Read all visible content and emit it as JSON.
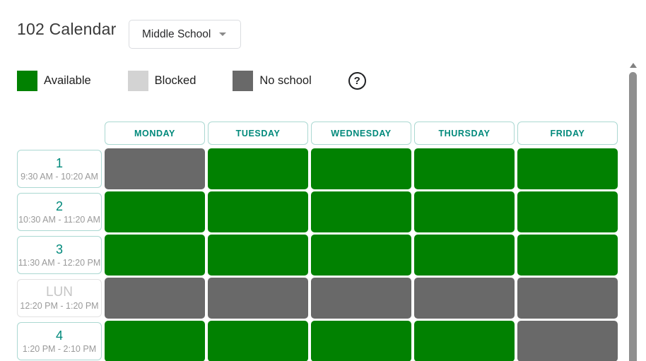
{
  "header": {
    "title": "102 Calendar",
    "school_selector": {
      "value": "Middle School"
    }
  },
  "legend": {
    "items": [
      {
        "key": "available",
        "label": "Available"
      },
      {
        "key": "blocked",
        "label": "Blocked"
      },
      {
        "key": "no_school",
        "label": "No school"
      }
    ],
    "help_label": "?"
  },
  "calendar": {
    "days": [
      "MONDAY",
      "TUESDAY",
      "WEDNESDAY",
      "THURSDAY",
      "FRIDAY"
    ],
    "periods": [
      {
        "label": "1",
        "time": "9:30 AM - 10:20 AM",
        "lunch": false,
        "slots": [
          "no_school",
          "available",
          "available",
          "available",
          "available"
        ]
      },
      {
        "label": "2",
        "time": "10:30 AM - 11:20 AM",
        "lunch": false,
        "slots": [
          "available",
          "available",
          "available",
          "available",
          "available"
        ]
      },
      {
        "label": "3",
        "time": "11:30 AM - 12:20 PM",
        "lunch": false,
        "slots": [
          "available",
          "available",
          "available",
          "available",
          "available"
        ]
      },
      {
        "label": "LUN",
        "time": "12:20 PM - 1:20 PM",
        "lunch": true,
        "slots": [
          "no_school",
          "no_school",
          "no_school",
          "no_school",
          "no_school"
        ]
      },
      {
        "label": "4",
        "time": "1:20 PM - 2:10 PM",
        "lunch": false,
        "slots": [
          "available",
          "available",
          "available",
          "available",
          "no_school"
        ]
      }
    ]
  },
  "colors": {
    "available": "#018101",
    "blocked": "#d3d3d3",
    "no_school": "#696969",
    "accent_teal": "#00897b"
  }
}
